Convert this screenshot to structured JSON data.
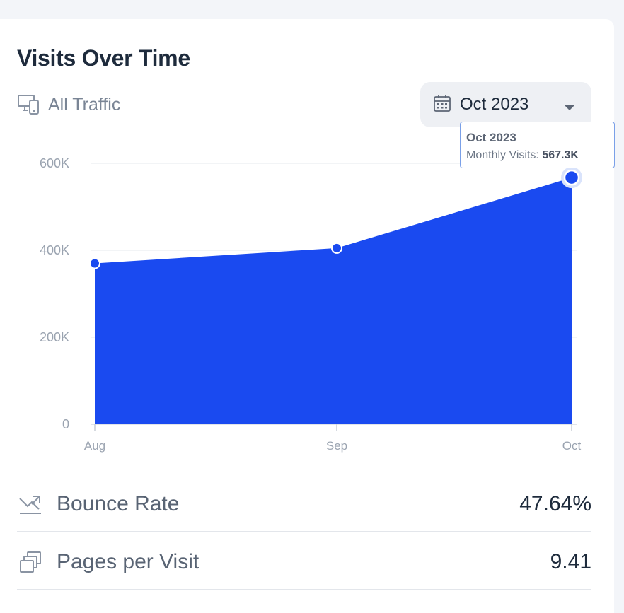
{
  "widget": {
    "title": "Visits Over Time",
    "traffic_filter": {
      "label": "All Traffic",
      "icon": "devices-icon"
    },
    "date_select": {
      "value": "Oct 2023",
      "icon": "calendar-icon"
    },
    "tooltip": {
      "title": "Oct 2023",
      "label": "Monthly Visits:",
      "value": "567.3K"
    }
  },
  "chart_data": {
    "type": "area",
    "categories": [
      "Aug",
      "Sep",
      "Oct"
    ],
    "values": [
      370000,
      405000,
      567300
    ],
    "y_ticks": [
      0,
      200000,
      400000,
      600000
    ],
    "y_tick_labels": [
      "0",
      "200K",
      "400K",
      "600K"
    ],
    "ylim": [
      0,
      600000
    ],
    "grid": true,
    "fill_color": "#1a4af0",
    "highlighted_category": "Oct"
  },
  "metrics": [
    {
      "label": "Bounce Rate",
      "value": "47.64%",
      "icon": "trend-down-icon"
    },
    {
      "label": "Pages per Visit",
      "value": "9.41",
      "icon": "pages-icon"
    }
  ]
}
